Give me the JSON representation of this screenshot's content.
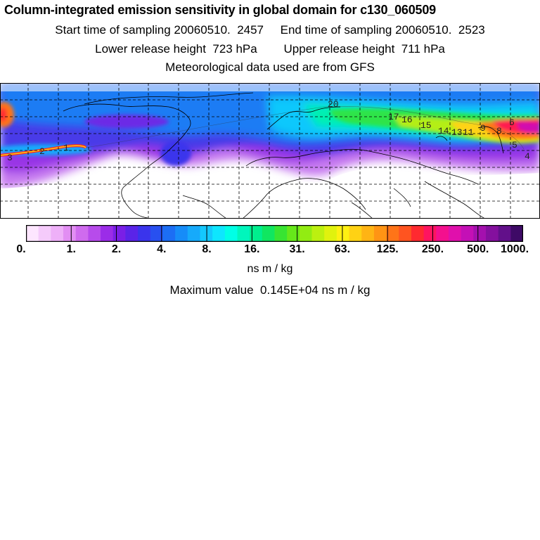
{
  "header": {
    "title": "Column-integrated emission sensitivity in global domain for c130_060509",
    "start_label": "Start time of sampling 20060510.  2457",
    "end_label": "End time of sampling 20060510.  2523",
    "lower_label": "Lower release height  723 hPa",
    "upper_label": "Upper release height  711 hPa",
    "met_label": "Meteorological data used are from GFS"
  },
  "map": {
    "trajectory_labels": [
      "20",
      "17",
      "16",
      "15",
      "14",
      "13",
      "11",
      "9",
      "8",
      "6",
      "5",
      "4",
      "3",
      "2",
      "1"
    ],
    "grid": "dashed",
    "projection": "global lat-lon"
  },
  "colorbar": {
    "tick_labels": [
      "0.",
      "1.",
      "2.",
      "4.",
      "8.",
      "16.",
      "31.",
      "63.",
      "125.",
      "250.",
      "500.",
      "1000."
    ],
    "colors": [
      "#fde6ff",
      "#f5cbfb",
      "#eeb0f8",
      "#e28ef3",
      "#cf6bee",
      "#b74beb",
      "#9b2ce8",
      "#7a1fe6",
      "#5a24e8",
      "#3a34ec",
      "#2850f0",
      "#1c6ef4",
      "#168cf8",
      "#16aafb",
      "#14c8fd",
      "#0ee6fe",
      "#00ffe6",
      "#00f6bc",
      "#00ee8e",
      "#10e660",
      "#38e432",
      "#66e81a",
      "#92ec12",
      "#bcf010",
      "#e0f20e",
      "#fff012",
      "#ffd214",
      "#ffb414",
      "#ff9414",
      "#ff7418",
      "#ff5420",
      "#ff2a30",
      "#ff1460",
      "#f4108e",
      "#e010ac",
      "#c410b6",
      "#a410ae",
      "#84109e",
      "#62108a",
      "#3e0a66"
    ],
    "units": "ns m / kg",
    "max_label": "Maximum value  0.145E+04 ns m / kg"
  }
}
